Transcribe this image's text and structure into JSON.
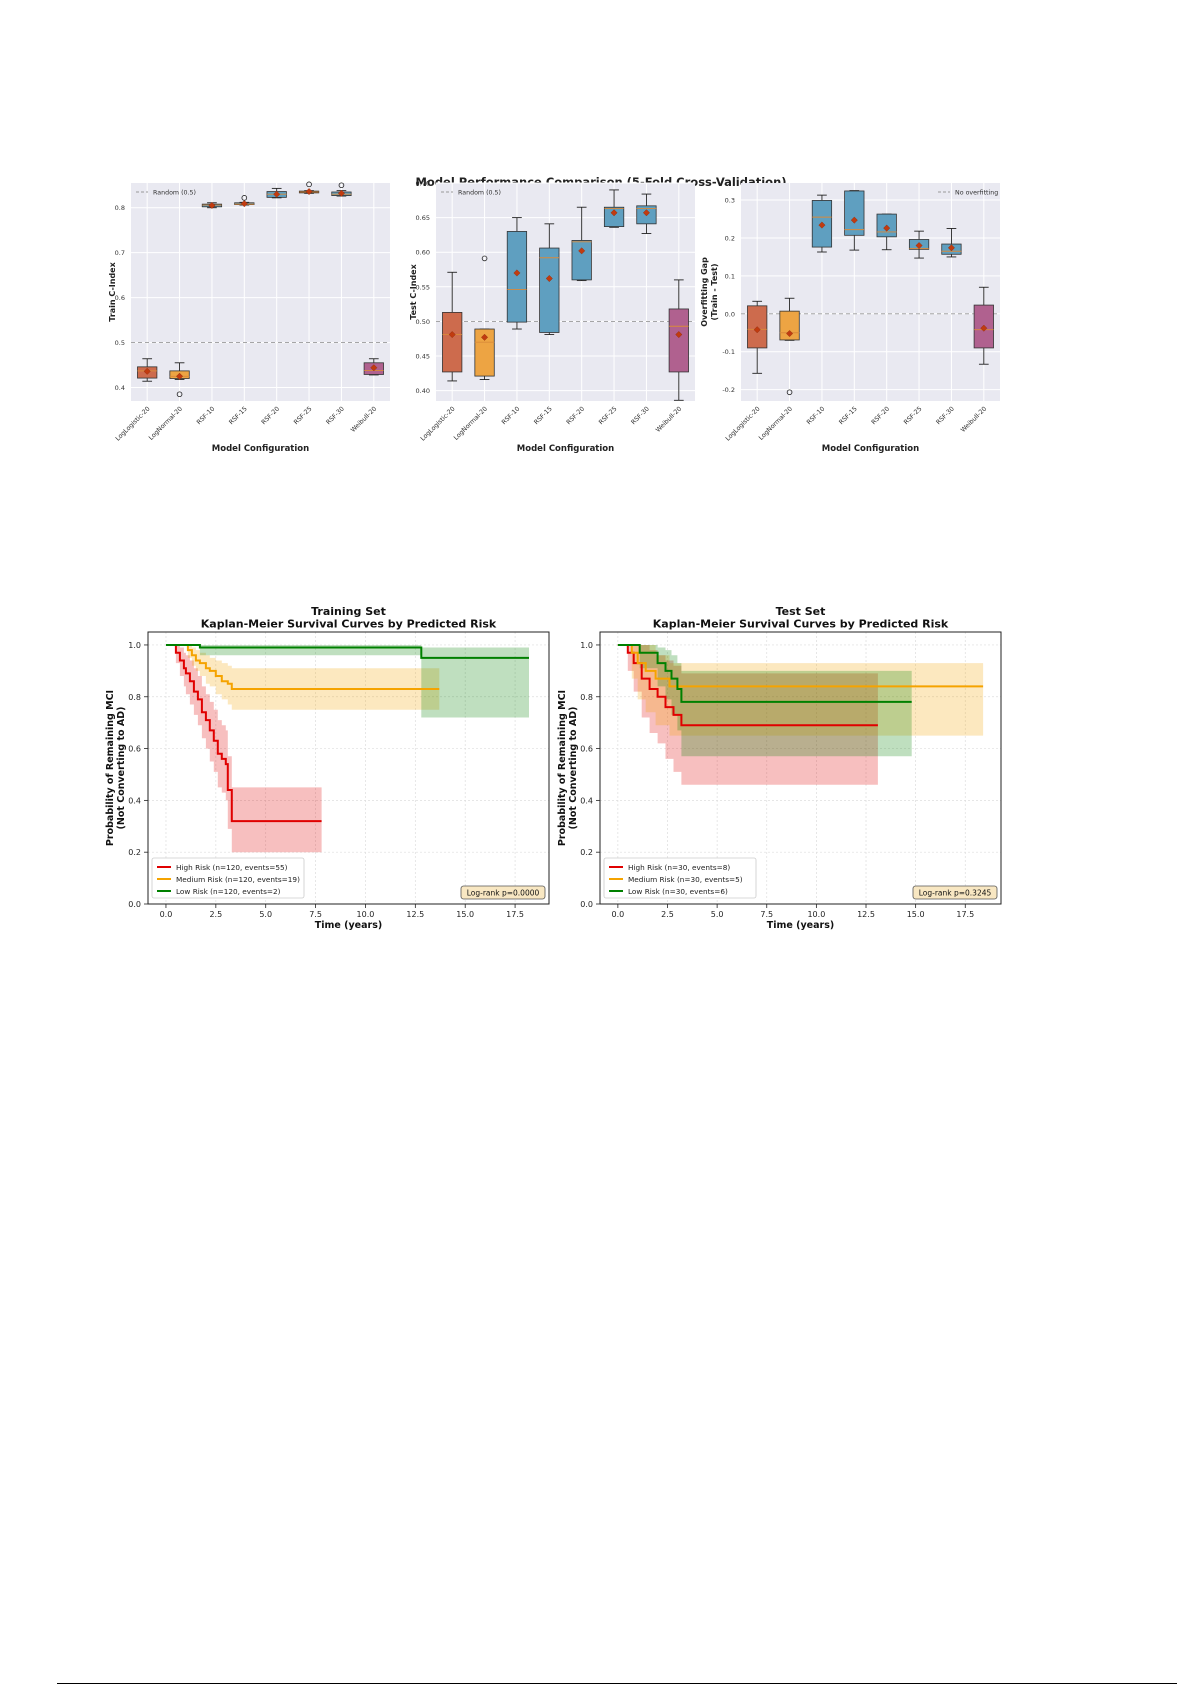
{
  "figure1": {
    "title": "Model Performance Comparison (5-Fold Cross-Validation)",
    "xlabel": "Model Configuration",
    "categories": [
      "LogLogistic-20",
      "LogNormal-20",
      "RSF-10",
      "RSF-15",
      "RSF-20",
      "RSF-25",
      "RSF-30",
      "Weibull-20"
    ],
    "colors": [
      "#cd6b4d",
      "#eda443",
      "#5f9fc0",
      "#5f9fc0",
      "#5f9fc0",
      "#5f9fc0",
      "#5f9fc0",
      "#b0618f"
    ]
  },
  "chart_data": [
    {
      "type": "box",
      "ylabel": "Train C-Index",
      "ylim": [
        0.37,
        0.855
      ],
      "yticks": [
        "0.4",
        "0.5",
        "0.6",
        "0.7",
        "0.8"
      ],
      "reference_line": {
        "y": 0.5,
        "label": "Random (0.5)"
      },
      "legend": "top-left",
      "boxes": [
        {
          "whislo": 0.414,
          "q1": 0.421,
          "med": 0.437,
          "q3": 0.446,
          "whishi": 0.464,
          "mean": 0.436,
          "fliers": []
        },
        {
          "whislo": 0.418,
          "q1": 0.42,
          "med": 0.425,
          "q3": 0.437,
          "whishi": 0.455,
          "mean": 0.425,
          "fliers": [
            0.385
          ]
        },
        {
          "whislo": 0.8,
          "q1": 0.802,
          "med": 0.806,
          "q3": 0.808,
          "whishi": 0.811,
          "mean": 0.805,
          "fliers": []
        },
        {
          "whislo": 0.806,
          "q1": 0.807,
          "med": 0.808,
          "q3": 0.811,
          "whishi": 0.812,
          "mean": 0.809,
          "fliers": [
            0.822
          ]
        },
        {
          "whislo": 0.822,
          "q1": 0.823,
          "med": 0.83,
          "q3": 0.836,
          "whishi": 0.843,
          "mean": 0.83,
          "fliers": []
        },
        {
          "whislo": 0.832,
          "q1": 0.833,
          "med": 0.835,
          "q3": 0.837,
          "whishi": 0.838,
          "mean": 0.836,
          "fliers": [
            0.852
          ]
        },
        {
          "whislo": 0.826,
          "q1": 0.827,
          "med": 0.83,
          "q3": 0.835,
          "whishi": 0.838,
          "mean": 0.832,
          "fliers": [
            0.85
          ]
        },
        {
          "whislo": 0.428,
          "q1": 0.429,
          "med": 0.438,
          "q3": 0.455,
          "whishi": 0.464,
          "mean": 0.444,
          "fliers": []
        }
      ]
    },
    {
      "type": "box",
      "ylabel": "Test C-Index",
      "ylim": [
        0.385,
        0.7
      ],
      "yticks": [
        "0.40",
        "0.45",
        "0.50",
        "0.55",
        "0.60",
        "0.65",
        "0.70"
      ],
      "reference_line": {
        "y": 0.5,
        "label": "Random (0.5)"
      },
      "legend": "top-left",
      "boxes": [
        {
          "whislo": 0.414,
          "q1": 0.427,
          "med": 0.481,
          "q3": 0.513,
          "whishi": 0.571,
          "mean": 0.481,
          "fliers": []
        },
        {
          "whislo": 0.416,
          "q1": 0.421,
          "med": 0.47,
          "q3": 0.489,
          "whishi": 0.489,
          "mean": 0.477,
          "fliers": [
            0.591
          ]
        },
        {
          "whislo": 0.489,
          "q1": 0.499,
          "med": 0.546,
          "q3": 0.63,
          "whishi": 0.65,
          "mean": 0.57,
          "fliers": []
        },
        {
          "whislo": 0.481,
          "q1": 0.484,
          "med": 0.592,
          "q3": 0.606,
          "whishi": 0.641,
          "mean": 0.562,
          "fliers": []
        },
        {
          "whislo": 0.559,
          "q1": 0.56,
          "med": 0.615,
          "q3": 0.617,
          "whishi": 0.665,
          "mean": 0.602,
          "fliers": []
        },
        {
          "whislo": 0.636,
          "q1": 0.637,
          "med": 0.663,
          "q3": 0.665,
          "whishi": 0.69,
          "mean": 0.657,
          "fliers": []
        },
        {
          "whislo": 0.627,
          "q1": 0.641,
          "med": 0.663,
          "q3": 0.667,
          "whishi": 0.684,
          "mean": 0.657,
          "fliers": []
        },
        {
          "whislo": 0.386,
          "q1": 0.427,
          "med": 0.493,
          "q3": 0.518,
          "whishi": 0.56,
          "mean": 0.481,
          "fliers": []
        }
      ]
    },
    {
      "type": "box",
      "ylabel": "Overfitting Gap\n(Train - Test)",
      "ylim": [
        -0.23,
        0.345
      ],
      "yticks": [
        "-0.2",
        "-0.1",
        "0.0",
        "0.1",
        "0.2",
        "0.3"
      ],
      "reference_line": {
        "y": 0.0,
        "label": "No overfitting"
      },
      "legend": "top-right",
      "boxes": [
        {
          "whislo": -0.157,
          "q1": -0.09,
          "med": -0.041,
          "q3": 0.021,
          "whishi": 0.033,
          "mean": -0.042,
          "fliers": []
        },
        {
          "whislo": -0.07,
          "q1": -0.069,
          "med": -0.05,
          "q3": 0.007,
          "whishi": 0.041,
          "mean": -0.052,
          "fliers": [
            -0.207
          ]
        },
        {
          "whislo": 0.163,
          "q1": 0.176,
          "med": 0.255,
          "q3": 0.299,
          "whishi": 0.313,
          "mean": 0.234,
          "fliers": []
        },
        {
          "whislo": 0.168,
          "q1": 0.207,
          "med": 0.222,
          "q3": 0.324,
          "whishi": 0.325,
          "mean": 0.247,
          "fliers": []
        },
        {
          "whislo": 0.169,
          "q1": 0.203,
          "med": 0.216,
          "q3": 0.263,
          "whishi": 0.263,
          "mean": 0.226,
          "fliers": []
        },
        {
          "whislo": 0.147,
          "q1": 0.17,
          "med": 0.172,
          "q3": 0.196,
          "whishi": 0.218,
          "mean": 0.18,
          "fliers": []
        },
        {
          "whislo": 0.15,
          "q1": 0.157,
          "med": 0.165,
          "q3": 0.184,
          "whishi": 0.225,
          "mean": 0.174,
          "fliers": []
        },
        {
          "whislo": -0.133,
          "q1": -0.09,
          "med": -0.042,
          "q3": 0.023,
          "whishi": 0.07,
          "mean": -0.038,
          "fliers": []
        }
      ]
    },
    {
      "type": "line",
      "title": "Training Set\nKaplan-Meier Survival Curves by Predicted Risk",
      "xlabel": "Time (years)",
      "ylabel": "Probability of Remaining MCI\n(Not Converting to AD)",
      "xlim": [
        -0.9,
        19.2
      ],
      "ylim": [
        0,
        1.05
      ],
      "xticks": [
        "0.0",
        "2.5",
        "5.0",
        "7.5",
        "10.0",
        "12.5",
        "15.0",
        "17.5"
      ],
      "yticks": [
        "0.0",
        "0.2",
        "0.4",
        "0.6",
        "0.8",
        "1.0"
      ],
      "annotation": "Log-rank p=0.0000",
      "legend": "bottom-left",
      "series": [
        {
          "name": "High Risk (n=120, events=55)",
          "color": "#e00000",
          "x": [
            0,
            0.5,
            0.7,
            0.9,
            1.0,
            1.2,
            1.4,
            1.6,
            1.8,
            2.0,
            2.2,
            2.4,
            2.6,
            2.8,
            3.0,
            3.1,
            3.3,
            7.8
          ],
          "y": [
            1.0,
            0.97,
            0.94,
            0.91,
            0.89,
            0.86,
            0.82,
            0.79,
            0.74,
            0.71,
            0.67,
            0.63,
            0.58,
            0.56,
            0.54,
            0.44,
            0.32,
            0.32
          ],
          "lo": [
            1.0,
            0.93,
            0.88,
            0.84,
            0.81,
            0.77,
            0.73,
            0.69,
            0.64,
            0.6,
            0.55,
            0.51,
            0.45,
            0.43,
            0.4,
            0.29,
            0.2,
            0.2
          ],
          "hi": [
            1.0,
            1.0,
            0.99,
            0.97,
            0.96,
            0.94,
            0.91,
            0.88,
            0.84,
            0.81,
            0.78,
            0.75,
            0.71,
            0.69,
            0.67,
            0.57,
            0.45,
            0.45
          ]
        },
        {
          "name": "Medium Risk (n=120, events=19)",
          "color": "#f5a300",
          "x": [
            0,
            1.1,
            1.3,
            1.5,
            1.7,
            2.0,
            2.2,
            2.5,
            2.8,
            3.1,
            3.3,
            13.7
          ],
          "y": [
            1.0,
            0.98,
            0.96,
            0.94,
            0.93,
            0.91,
            0.9,
            0.88,
            0.86,
            0.85,
            0.83,
            0.83
          ],
          "lo": [
            1.0,
            0.95,
            0.92,
            0.9,
            0.88,
            0.85,
            0.84,
            0.81,
            0.79,
            0.77,
            0.75,
            0.75
          ],
          "hi": [
            1.0,
            1.0,
            0.99,
            0.98,
            0.97,
            0.96,
            0.95,
            0.94,
            0.93,
            0.92,
            0.91,
            0.91
          ]
        },
        {
          "name": "Low Risk (n=120, events=2)",
          "color": "#008000",
          "x": [
            0,
            1.7,
            12.8,
            18.2
          ],
          "y": [
            1.0,
            0.99,
            0.95,
            0.95
          ],
          "lo": [
            1.0,
            0.96,
            0.72,
            0.72
          ],
          "hi": [
            1.0,
            1.0,
            0.99,
            0.99
          ]
        }
      ]
    },
    {
      "type": "line",
      "title": "Test Set\nKaplan-Meier Survival Curves by Predicted Risk",
      "xlabel": "Time (years)",
      "ylabel": "Probability of Remaining MCI\n(Not Converting to AD)",
      "xlim": [
        -0.9,
        19.3
      ],
      "ylim": [
        0,
        1.05
      ],
      "xticks": [
        "0.0",
        "2.5",
        "5.0",
        "7.5",
        "10.0",
        "12.5",
        "15.0",
        "17.5"
      ],
      "yticks": [
        "0.0",
        "0.2",
        "0.4",
        "0.6",
        "0.8",
        "1.0"
      ],
      "annotation": "Log-rank p=0.3245",
      "legend": "bottom-left",
      "series": [
        {
          "name": "High Risk (n=30, events=8)",
          "color": "#e00000",
          "x": [
            0,
            0.5,
            0.8,
            1.2,
            1.6,
            2.0,
            2.4,
            2.8,
            3.2,
            13.1
          ],
          "y": [
            1.0,
            0.97,
            0.93,
            0.87,
            0.83,
            0.8,
            0.76,
            0.73,
            0.69,
            0.69
          ],
          "lo": [
            1.0,
            0.9,
            0.82,
            0.72,
            0.66,
            0.62,
            0.56,
            0.51,
            0.46,
            0.46
          ],
          "hi": [
            1.0,
            1.0,
            1.0,
            1.0,
            0.98,
            0.96,
            0.94,
            0.92,
            0.89,
            0.89
          ]
        },
        {
          "name": "Medium Risk (n=30, events=5)",
          "color": "#f5a300",
          "x": [
            0,
            0.7,
            1.0,
            1.4,
            1.9,
            2.6,
            18.4
          ],
          "y": [
            1.0,
            0.97,
            0.93,
            0.9,
            0.87,
            0.84,
            0.84
          ],
          "lo": [
            1.0,
            0.87,
            0.79,
            0.74,
            0.69,
            0.65,
            0.65
          ],
          "hi": [
            1.0,
            1.0,
            1.0,
            1.0,
            0.96,
            0.93,
            0.93
          ]
        },
        {
          "name": "Low Risk (n=30, events=6)",
          "color": "#008000",
          "x": [
            0,
            1.1,
            2.0,
            2.4,
            2.7,
            3.0,
            3.2,
            14.8
          ],
          "y": [
            1.0,
            0.97,
            0.93,
            0.9,
            0.87,
            0.83,
            0.78,
            0.78
          ],
          "lo": [
            1.0,
            0.91,
            0.84,
            0.79,
            0.73,
            0.67,
            0.57,
            0.57
          ],
          "hi": [
            1.0,
            1.0,
            0.99,
            0.98,
            0.96,
            0.93,
            0.9,
            0.9
          ]
        }
      ]
    }
  ]
}
